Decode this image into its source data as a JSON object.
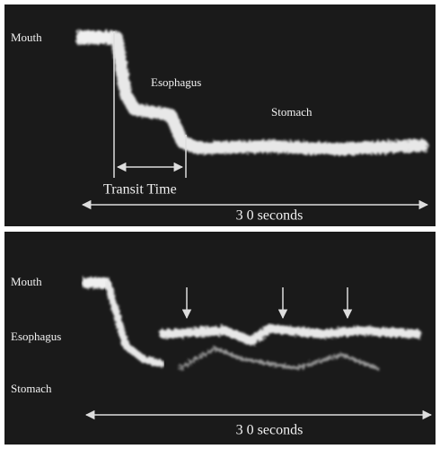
{
  "panels": [
    {
      "mouth": "Mouth",
      "esophagus": "Esophagus",
      "stomach": "Stomach",
      "transit": "Transit Time",
      "duration": "3 0 seconds"
    },
    {
      "mouth": "Mouth",
      "esophagus": "Esophagus",
      "stomach": "Stomach",
      "duration": "3 0 seconds"
    }
  ]
}
